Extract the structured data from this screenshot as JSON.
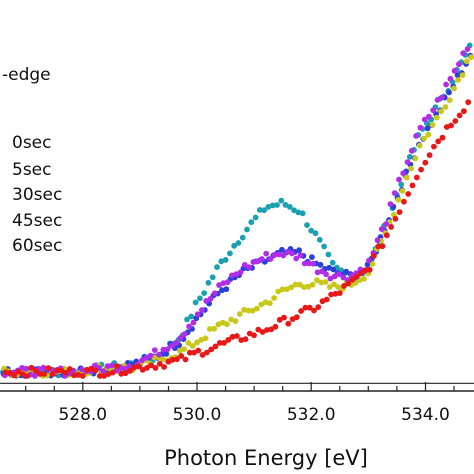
{
  "chart_data": {
    "type": "scatter",
    "title_fragment": "-edge",
    "xlabel": "Photon Energy [eV]",
    "ylabel": "",
    "xlim": [
      526.55,
      534.85
    ],
    "ylim": [
      -0.02,
      1.0
    ],
    "xticks": [
      528.0,
      530.0,
      532.0,
      534.0
    ],
    "xtick_labels": [
      "528.0",
      "530.0",
      "532.0",
      "534.0"
    ],
    "baseline_y": 0.0,
    "legend_position": "left",
    "grid": false,
    "series": [
      {
        "name": "0sec",
        "color": "#1aa0b0",
        "key": "s0"
      },
      {
        "name": "5sec",
        "color": "#2d3fd9",
        "key": "s5"
      },
      {
        "name": "30sec",
        "color": "#c8c81a",
        "key": "s30"
      },
      {
        "name": "45sec",
        "color": "#b02ee8",
        "key": "s45"
      },
      {
        "name": "60sec",
        "color": "#e81818",
        "key": "s60"
      }
    ],
    "curves": {
      "x": [
        526.6,
        527.2,
        527.8,
        528.4,
        528.9,
        529.3,
        529.7,
        530.0,
        530.4,
        530.8,
        531.2,
        531.5,
        531.8,
        532.1,
        532.4,
        532.7,
        533.0,
        533.3,
        533.6,
        533.9,
        534.2,
        534.5,
        534.8
      ],
      "s0": [
        0.03,
        0.03,
        0.03,
        0.04,
        0.05,
        0.07,
        0.12,
        0.21,
        0.31,
        0.39,
        0.46,
        0.47,
        0.45,
        0.38,
        0.3,
        0.28,
        0.3,
        0.41,
        0.53,
        0.65,
        0.72,
        0.8,
        0.88
      ],
      "s5": [
        0.03,
        0.03,
        0.03,
        0.04,
        0.05,
        0.07,
        0.11,
        0.17,
        0.24,
        0.29,
        0.32,
        0.34,
        0.34,
        0.31,
        0.29,
        0.28,
        0.3,
        0.41,
        0.52,
        0.63,
        0.7,
        0.78,
        0.86
      ],
      "s30": [
        0.03,
        0.03,
        0.03,
        0.04,
        0.04,
        0.06,
        0.08,
        0.11,
        0.15,
        0.18,
        0.21,
        0.24,
        0.26,
        0.26,
        0.25,
        0.26,
        0.29,
        0.39,
        0.51,
        0.62,
        0.69,
        0.77,
        0.86
      ],
      "s45": [
        0.03,
        0.03,
        0.03,
        0.04,
        0.05,
        0.08,
        0.12,
        0.18,
        0.25,
        0.3,
        0.33,
        0.34,
        0.33,
        0.3,
        0.28,
        0.28,
        0.31,
        0.42,
        0.55,
        0.66,
        0.73,
        0.81,
        0.9
      ],
      "s60": [
        0.03,
        0.03,
        0.03,
        0.03,
        0.04,
        0.05,
        0.06,
        0.08,
        0.1,
        0.12,
        0.14,
        0.16,
        0.18,
        0.2,
        0.23,
        0.26,
        0.3,
        0.38,
        0.47,
        0.56,
        0.63,
        0.69,
        0.74
      ]
    }
  }
}
